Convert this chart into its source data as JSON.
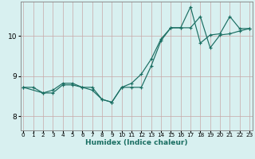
{
  "xlabel": "Humidex (Indice chaleur)",
  "bg_color": "#d8f0f0",
  "grid_color": "#c8a8a8",
  "line_color": "#1a6e62",
  "x_ticks": [
    0,
    1,
    2,
    3,
    4,
    5,
    6,
    7,
    8,
    9,
    10,
    11,
    12,
    13,
    14,
    15,
    16,
    17,
    18,
    19,
    20,
    21,
    22,
    23
  ],
  "y_ticks": [
    8,
    9,
    10
  ],
  "xlim": [
    -0.3,
    23.3
  ],
  "ylim": [
    7.65,
    10.85
  ],
  "line1_x": [
    0,
    1,
    2,
    3,
    4,
    5,
    6,
    7,
    8,
    9,
    10,
    11,
    12,
    13,
    14,
    15,
    16,
    17,
    18,
    19,
    20,
    21,
    22,
    23
  ],
  "line1_y": [
    8.72,
    8.72,
    8.58,
    8.58,
    8.78,
    8.78,
    8.72,
    8.72,
    8.42,
    8.35,
    8.72,
    8.72,
    8.72,
    9.25,
    9.88,
    10.2,
    10.2,
    10.2,
    10.48,
    9.7,
    10.02,
    10.05,
    10.12,
    10.18
  ],
  "line2_x": [
    0,
    2,
    3,
    4,
    5,
    6,
    7,
    8,
    9,
    10,
    11,
    12,
    13,
    14,
    15,
    16,
    17,
    18,
    19,
    20,
    21,
    22,
    23
  ],
  "line2_y": [
    8.72,
    8.58,
    8.65,
    8.82,
    8.82,
    8.72,
    8.65,
    8.42,
    8.35,
    8.72,
    8.82,
    9.05,
    9.42,
    9.92,
    10.2,
    10.2,
    10.72,
    9.82,
    10.02,
    10.05,
    10.48,
    10.18,
    10.18
  ]
}
